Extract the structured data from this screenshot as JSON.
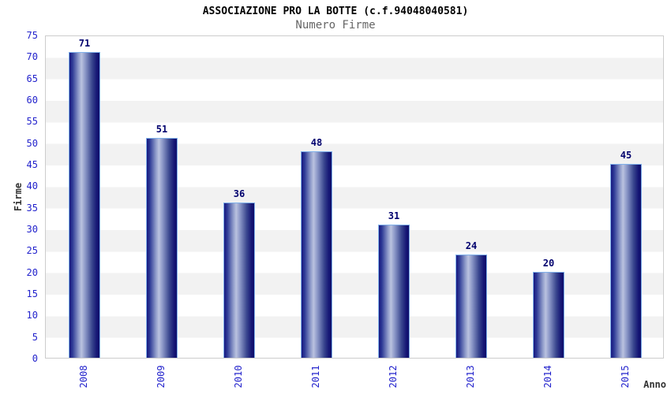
{
  "chart_data": {
    "type": "bar",
    "title": "ASSOCIAZIONE PRO LA BOTTE (c.f.94048040581)",
    "subtitle": "Numero Firme",
    "xlabel": "Anno",
    "ylabel": "Firme",
    "categories": [
      "2008",
      "2009",
      "2010",
      "2011",
      "2012",
      "2013",
      "2014",
      "2015"
    ],
    "values": [
      71,
      51,
      36,
      48,
      31,
      24,
      20,
      45
    ],
    "ylim": [
      0,
      75
    ],
    "ytick_step": 5,
    "grid": "alternating horizontal bands every 5 units",
    "legend_position": "none",
    "colors": {
      "bar_edge_dark": "#10106a",
      "bar_center_light": "#bac2df",
      "bar_border": "#7fb0ea",
      "value_label": "#00006e",
      "axis_tick_label": "#2222cc",
      "band_gray": "#f2f2f2",
      "band_white": "#ffffff",
      "plot_border": "#cccccc",
      "title_color": "#000000",
      "subtitle_color": "#666666",
      "axis_title_color": "#333333"
    }
  }
}
